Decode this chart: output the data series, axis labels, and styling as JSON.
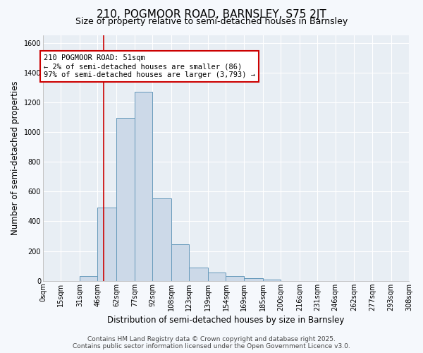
{
  "title": "210, POGMOOR ROAD, BARNSLEY, S75 2JT",
  "subtitle": "Size of property relative to semi-detached houses in Barnsley",
  "xlabel": "Distribution of semi-detached houses by size in Barnsley",
  "ylabel": "Number of semi-detached properties",
  "bin_edges": [
    0,
    15,
    31,
    46,
    62,
    77,
    92,
    108,
    123,
    139,
    154,
    169,
    185,
    200,
    216,
    231,
    246,
    262,
    277,
    293,
    308
  ],
  "bar_heights": [
    0,
    0,
    30,
    490,
    1095,
    1270,
    555,
    245,
    90,
    55,
    30,
    20,
    10,
    0,
    0,
    0,
    0,
    0,
    0,
    0
  ],
  "bar_facecolor": "#ccd9e8",
  "bar_edgecolor": "#6699bb",
  "vline_x": 51,
  "vline_color": "#cc0000",
  "annotation_title": "210 POGMOOR ROAD: 51sqm",
  "annotation_line1": "← 2% of semi-detached houses are smaller (86)",
  "annotation_line2": "97% of semi-detached houses are larger (3,793) →",
  "annotation_box_edgecolor": "#cc0000",
  "annotation_box_facecolor": "#ffffff",
  "ylim": [
    0,
    1650
  ],
  "yticks": [
    0,
    200,
    400,
    600,
    800,
    1000,
    1200,
    1400,
    1600
  ],
  "tick_labels": [
    "0sqm",
    "15sqm",
    "31sqm",
    "46sqm",
    "62sqm",
    "77sqm",
    "92sqm",
    "108sqm",
    "123sqm",
    "139sqm",
    "154sqm",
    "169sqm",
    "185sqm",
    "200sqm",
    "216sqm",
    "231sqm",
    "246sqm",
    "262sqm",
    "277sqm",
    "293sqm",
    "308sqm"
  ],
  "footer1": "Contains HM Land Registry data © Crown copyright and database right 2025.",
  "footer2": "Contains public sector information licensed under the Open Government Licence v3.0.",
  "plot_bg_color": "#e8eef4",
  "fig_bg_color": "#f5f8fc",
  "grid_color": "#ffffff",
  "title_fontsize": 11,
  "subtitle_fontsize": 9,
  "axis_label_fontsize": 8.5,
  "tick_fontsize": 7,
  "footer_fontsize": 6.5,
  "annotation_fontsize": 7.5
}
